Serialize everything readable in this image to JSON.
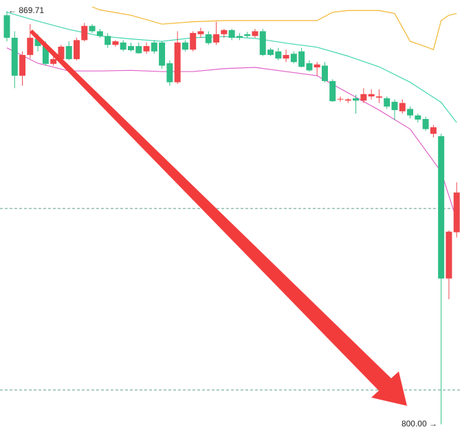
{
  "chart_data": {
    "type": "candlestick",
    "ylim": [
      798.37,
      871.57
    ],
    "up_color": "#ef454a",
    "down_color": "#2ebd85",
    "open": [
      869.0,
      865.2,
      858.8,
      862.3,
      865.0,
      863.8,
      860.8,
      861.6,
      863.8,
      861.6,
      864.8,
      867.2,
      866.3,
      865.5,
      864.0,
      864.4,
      863.8,
      863.8,
      862.9,
      864.4,
      864.4,
      860.9,
      857.7,
      864.4,
      863.2,
      865.8,
      865.8,
      864.4,
      865.8,
      866.5,
      865.5,
      865.8,
      865.5,
      866.3,
      863.2,
      862.9,
      861.7,
      862.5,
      862.9,
      860.9,
      860.2,
      860.5,
      857.9,
      854.8,
      854.6,
      855.0,
      854.6,
      855.3,
      855.1,
      855.0,
      854.4,
      852.8,
      853.2,
      852.1,
      851.5,
      849.0,
      848.6,
      824.6,
      832.4
    ],
    "high": [
      869.71,
      866.3,
      862.9,
      867.5,
      865.8,
      864.6,
      862.3,
      864.0,
      864.6,
      865.2,
      867.7,
      867.5,
      866.7,
      866.0,
      864.8,
      864.8,
      864.4,
      864.4,
      864.4,
      864.8,
      864.6,
      861.4,
      866.3,
      864.8,
      866.3,
      866.9,
      866.3,
      867.9,
      866.7,
      866.7,
      866.0,
      866.2,
      866.7,
      866.7,
      863.5,
      863.5,
      863.2,
      862.9,
      863.5,
      861.4,
      861.1,
      861.1,
      858.2,
      855.3,
      855.0,
      855.6,
      856.7,
      856.5,
      856.5,
      855.3,
      854.8,
      854.8,
      853.6,
      852.4,
      851.9,
      850.5,
      849.0,
      832.7,
      840.8
    ],
    "low": [
      864.6,
      856.7,
      857.1,
      861.7,
      862.9,
      860.5,
      860.5,
      861.1,
      861.4,
      861.4,
      864.6,
      866.0,
      865.2,
      863.5,
      863.7,
      862.9,
      862.9,
      862.5,
      862.5,
      862.5,
      860.0,
      857.1,
      857.4,
      862.9,
      862.9,
      865.2,
      864.0,
      864.0,
      865.2,
      864.8,
      864.8,
      865.2,
      865.2,
      862.1,
      862.1,
      861.4,
      861.1,
      860.9,
      860.2,
      859.5,
      858.8,
      857.7,
      854.4,
      854.4,
      854.2,
      852.4,
      854.2,
      854.8,
      854.2,
      853.2,
      851.3,
      852.4,
      851.6,
      850.9,
      849.5,
      848.4,
      800,
      821.1,
      831.5
    ],
    "close": [
      865.2,
      858.8,
      862.3,
      865.2,
      863.8,
      860.8,
      861.6,
      863.7,
      861.6,
      864.8,
      867.2,
      866.3,
      865.5,
      864.0,
      864.6,
      863.2,
      863.1,
      862.6,
      863.8,
      862.9,
      860.5,
      857.7,
      864.4,
      863.2,
      866.0,
      866.3,
      864.3,
      865.8,
      866.5,
      865.2,
      865.2,
      865.5,
      866.3,
      862.3,
      862.3,
      861.7,
      862.3,
      861.1,
      860.3,
      859.7,
      860.7,
      857.9,
      854.5,
      854.9,
      854.8,
      854.6,
      855.7,
      855.7,
      855.3,
      853.6,
      853.0,
      854.2,
      852.1,
      851.4,
      849.8,
      850.1,
      824.6,
      832.5,
      839.1
    ],
    "bands": [
      {
        "color": "#f2b630",
        "x": [
          11,
          12,
          16,
          20,
          24,
          28,
          32,
          36,
          40,
          42,
          44,
          48,
          50,
          52,
          54,
          55,
          56,
          57,
          58
        ],
        "values": [
          870.4,
          869.9,
          869.0,
          867.5,
          867.9,
          868.1,
          868.1,
          868.1,
          868.1,
          869.5,
          869.8,
          869.8,
          869.3,
          864.6,
          863.7,
          863.2,
          868.1,
          869.0,
          869.3
        ]
      },
      {
        "color": "#3fd4ae",
        "x": [
          0,
          4,
          8,
          12,
          16,
          20,
          24,
          28,
          32,
          36,
          40,
          44,
          48,
          52,
          56,
          58
        ],
        "values": [
          869.5,
          868.0,
          866.6,
          865.5,
          865.0,
          864.6,
          865.2,
          865.4,
          865.1,
          864.3,
          863.6,
          862.1,
          860.3,
          857.7,
          854.3,
          850.9
        ]
      },
      {
        "color": "#e060c8",
        "x": [
          0,
          4,
          8,
          12,
          16,
          20,
          24,
          28,
          32,
          36,
          40,
          44,
          48,
          52,
          56,
          58
        ],
        "values": [
          863.5,
          860.9,
          859.6,
          859.6,
          859.7,
          859.5,
          859.5,
          860.0,
          860.2,
          859.5,
          858.8,
          855.9,
          853.0,
          849.8,
          842.6,
          834.5
        ]
      }
    ],
    "price_lines": [
      836.4,
      805.8
    ],
    "max_marker": 869.71,
    "min_marker": {
      "value": 800,
      "label": "800.00"
    }
  }
}
